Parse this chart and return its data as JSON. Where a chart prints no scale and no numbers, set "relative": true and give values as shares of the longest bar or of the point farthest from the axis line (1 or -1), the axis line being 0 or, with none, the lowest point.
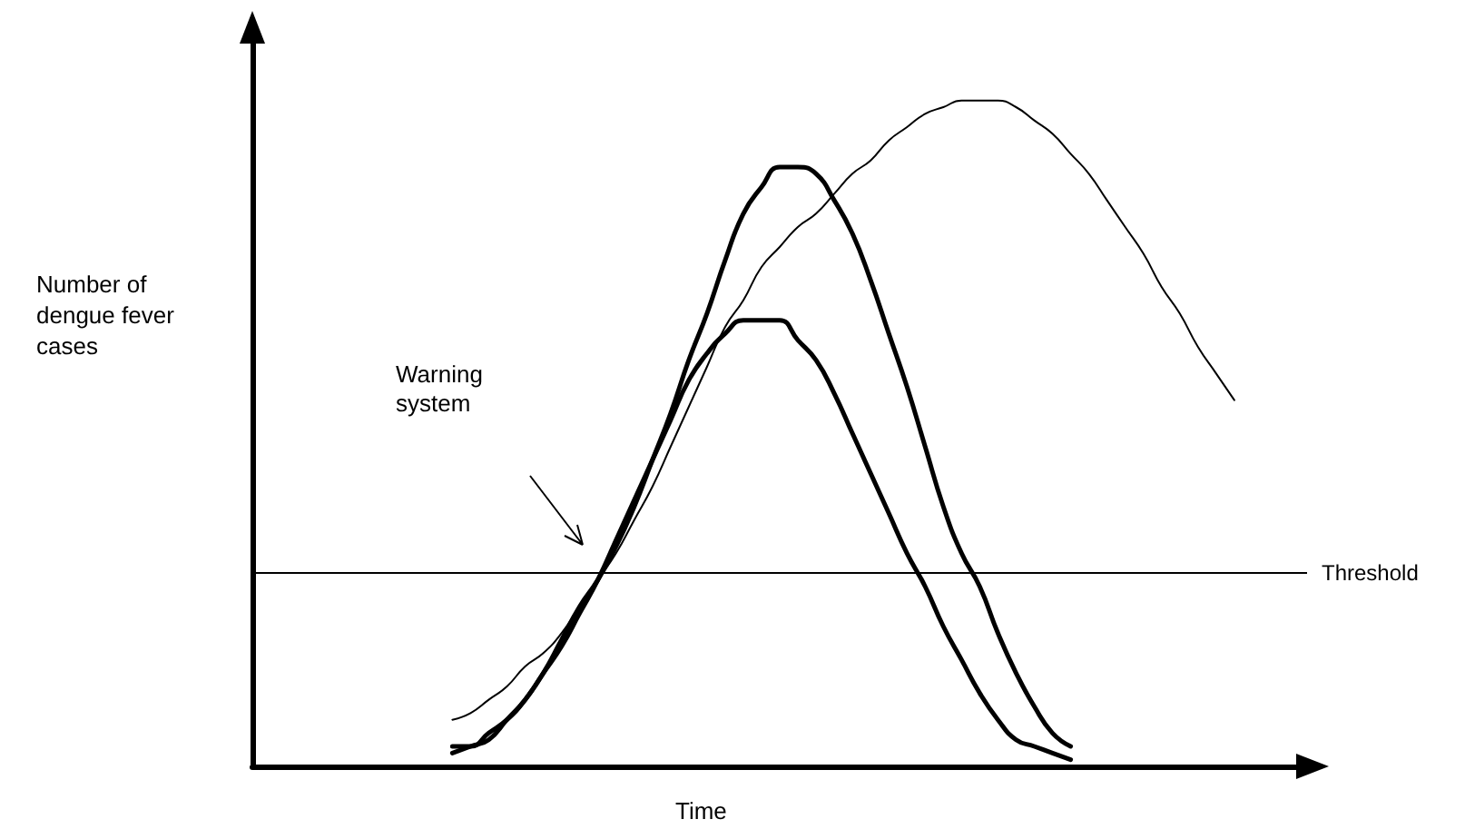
{
  "chart_data": {
    "type": "line",
    "relative": true,
    "marker": "none",
    "xlabel": "Time",
    "ylabel": "Number of dengue fever cases",
    "annotations": [
      "Warning system"
    ],
    "ref_lines": [
      {
        "axis": "y",
        "value": 0.29,
        "label": "Threshold",
        "color": "#000000"
      }
    ],
    "categories": [
      null,
      null,
      null,
      null,
      null,
      null,
      null,
      null,
      null,
      null,
      null,
      null,
      null,
      null,
      null,
      null,
      null,
      null,
      null,
      null,
      null,
      null,
      null,
      null,
      null,
      null,
      null,
      null,
      null,
      null,
      null,
      null,
      null,
      null,
      null,
      null,
      null,
      null,
      null,
      null,
      null,
      null,
      null,
      null,
      null,
      null,
      null,
      null,
      null,
      null,
      null,
      null,
      null,
      null,
      null,
      null,
      null,
      null,
      null
    ],
    "series": [
      {
        "color": "#000000",
        "values": [
          null,
          null,
          null,
          null,
          null,
          null,
          null,
          null,
          null,
          null,
          null,
          0.03,
          0.03,
          0.05,
          0.07,
          0.1,
          0.14,
          0.19,
          0.24,
          0.28,
          0.33,
          0.39,
          0.46,
          0.53,
          0.61,
          0.68,
          0.76,
          0.83,
          0.87,
          0.9,
          0.9,
          0.89,
          0.85,
          0.8,
          0.73,
          0.65,
          0.57,
          0.48,
          0.39,
          0.32,
          0.27,
          0.2,
          0.14,
          0.09,
          0.05,
          0.03,
          null,
          null,
          null,
          null,
          null,
          null,
          null,
          null,
          null,
          null,
          null,
          null,
          null
        ]
      },
      {
        "color": "#000000",
        "values": [
          null,
          null,
          null,
          null,
          null,
          null,
          null,
          null,
          null,
          null,
          null,
          0.02,
          0.03,
          0.04,
          0.07,
          0.1,
          0.14,
          0.18,
          0.23,
          0.28,
          0.34,
          0.4,
          0.46,
          0.52,
          0.58,
          0.62,
          0.65,
          0.67,
          0.67,
          0.67,
          0.64,
          0.61,
          0.56,
          0.5,
          0.44,
          0.38,
          0.32,
          0.27,
          0.21,
          0.16,
          0.11,
          0.07,
          0.04,
          0.03,
          0.02,
          0.01,
          null,
          null,
          null,
          null,
          null,
          null,
          null,
          null,
          null,
          null,
          null,
          null,
          null
        ]
      },
      {
        "color": "#000000",
        "values": [
          null,
          null,
          null,
          null,
          null,
          null,
          null,
          null,
          null,
          null,
          null,
          0.07,
          0.08,
          0.1,
          0.12,
          0.15,
          0.17,
          0.2,
          0.24,
          0.28,
          0.32,
          0.37,
          0.42,
          0.48,
          0.54,
          0.6,
          0.66,
          0.7,
          0.75,
          0.78,
          0.81,
          0.83,
          0.86,
          0.89,
          0.91,
          0.94,
          0.96,
          0.98,
          0.99,
          1,
          1,
          1.0,
          0.99,
          0.97,
          0.95,
          0.92,
          0.89,
          0.85,
          0.81,
          0.77,
          0.72,
          0.68,
          0.63,
          0.59,
          0.55,
          null,
          null,
          null,
          null
        ]
      }
    ]
  }
}
